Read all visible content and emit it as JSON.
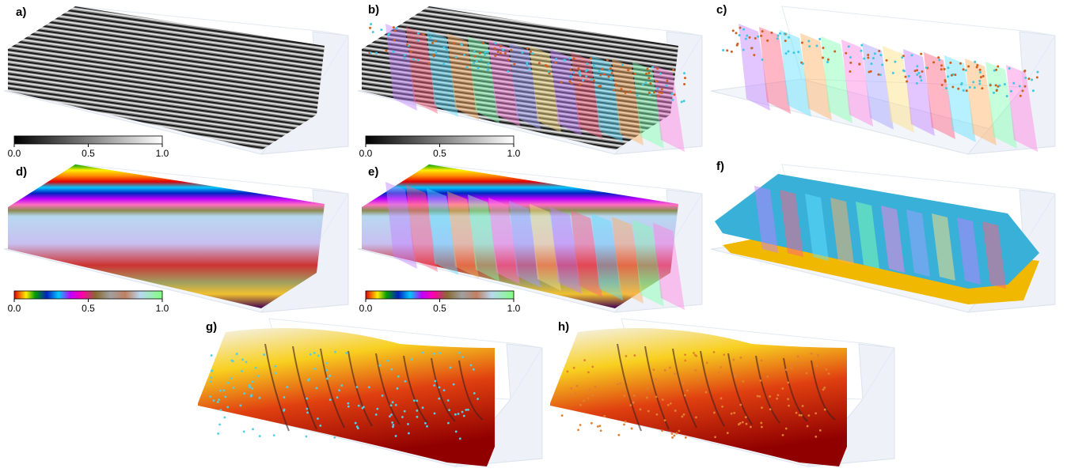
{
  "panels": [
    {
      "label": "a)"
    },
    {
      "label": "b)"
    },
    {
      "label": "c)"
    },
    {
      "label": "d)"
    },
    {
      "label": "e)"
    },
    {
      "label": "f)"
    },
    {
      "label": "g)"
    },
    {
      "label": "h)"
    }
  ],
  "colorbars": [
    {
      "ticks": [
        "0.0",
        "0.5",
        "1.0"
      ]
    },
    {
      "ticks": [
        "0.0",
        "0.5",
        "1.0"
      ]
    },
    {
      "ticks": [
        "0.0",
        "0.5",
        "1.0"
      ]
    },
    {
      "ticks": [
        "0.0",
        "0.5",
        "1.0"
      ]
    }
  ]
}
